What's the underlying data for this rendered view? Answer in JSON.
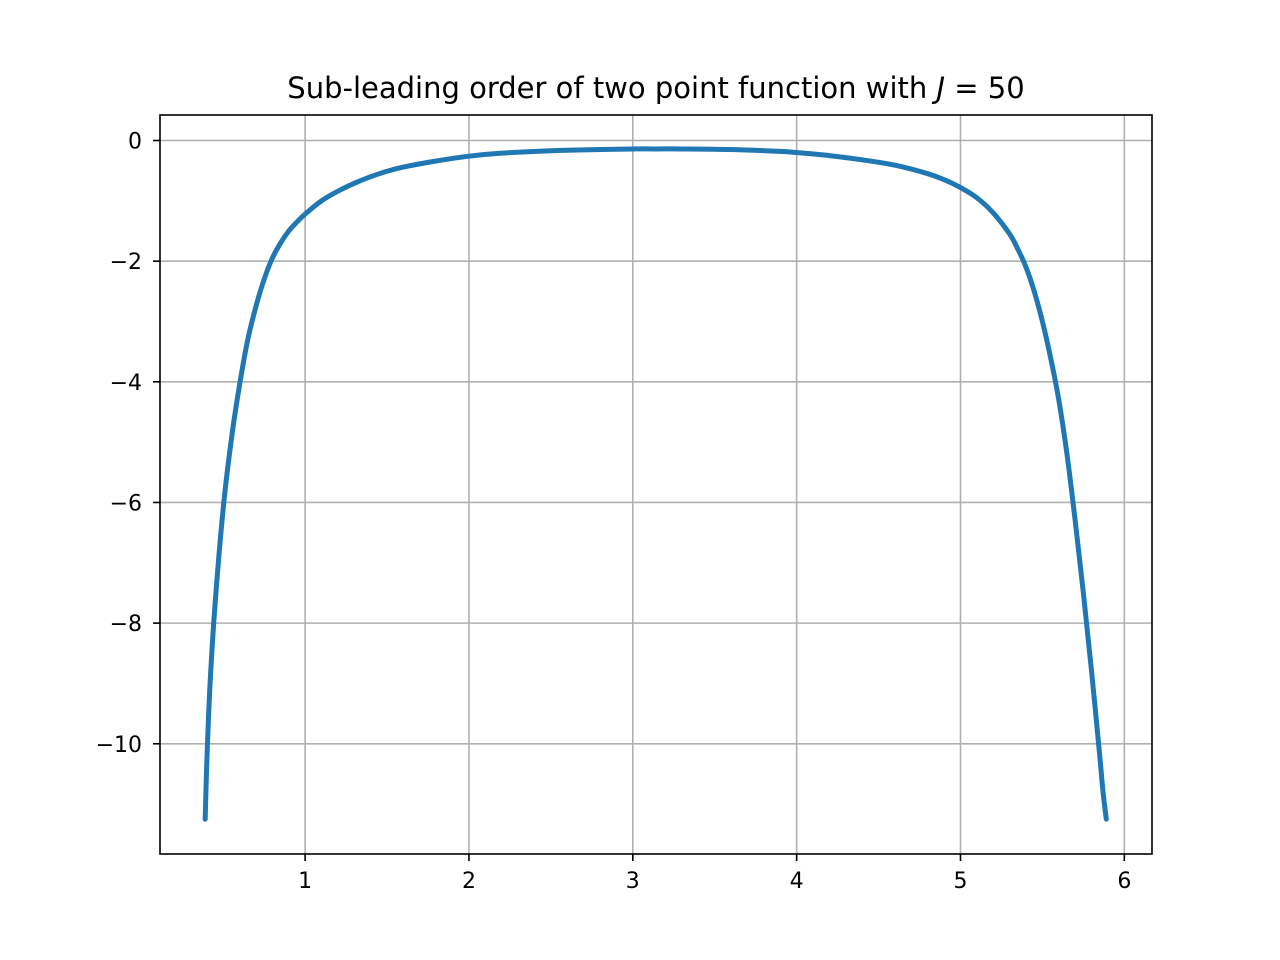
{
  "chart_data": {
    "type": "line",
    "title": "Sub-leading order of two point function with ",
    "title_math_var": "J",
    "title_math_rest": " = 50",
    "xlabel": "",
    "ylabel": "",
    "xlim": [
      0.1143,
      6.1689
    ],
    "ylim": [
      -11.8271,
      0.4227
    ],
    "x_ticks": [
      1,
      2,
      3,
      4,
      5,
      6
    ],
    "y_ticks": [
      0,
      -2,
      -4,
      -6,
      -8,
      -10
    ],
    "x_tick_labels": [
      "1",
      "2",
      "3",
      "4",
      "5",
      "6"
    ],
    "y_tick_labels": [
      "0",
      "−2",
      "−4",
      "−6",
      "−8",
      "−10"
    ],
    "grid": true,
    "legend": "none",
    "series": [
      {
        "color": "#1f77b4",
        "x": [
          0.39,
          0.4,
          0.42,
          0.45,
          0.5,
          0.55,
          0.6,
          0.65,
          0.7,
          0.75,
          0.8,
          0.85,
          0.9,
          0.95,
          1.0,
          1.1,
          1.2,
          1.3,
          1.4,
          1.5,
          1.6,
          1.8,
          2.0,
          2.2,
          2.5,
          2.8,
          3.0,
          3.14,
          3.3,
          3.6,
          3.9,
          4.0,
          4.2,
          4.4,
          4.6,
          4.8,
          4.9,
          5.0,
          5.1,
          5.2,
          5.3,
          5.35,
          5.4,
          5.45,
          5.5,
          5.55,
          5.6,
          5.65,
          5.7,
          5.75,
          5.8,
          5.85,
          5.87,
          5.89
        ],
        "y": [
          -11.25,
          -10.3,
          -9.0,
          -7.7,
          -6.1,
          -4.95,
          -4.05,
          -3.3,
          -2.75,
          -2.3,
          -1.95,
          -1.7,
          -1.5,
          -1.35,
          -1.22,
          -1.0,
          -0.84,
          -0.71,
          -0.6,
          -0.51,
          -0.44,
          -0.34,
          -0.26,
          -0.21,
          -0.17,
          -0.15,
          -0.14,
          -0.14,
          -0.14,
          -0.15,
          -0.18,
          -0.2,
          -0.25,
          -0.32,
          -0.41,
          -0.55,
          -0.65,
          -0.78,
          -0.95,
          -1.2,
          -1.55,
          -1.8,
          -2.1,
          -2.5,
          -3.0,
          -3.6,
          -4.3,
          -5.2,
          -6.3,
          -7.5,
          -8.8,
          -10.2,
          -10.8,
          -11.25
        ]
      }
    ]
  }
}
